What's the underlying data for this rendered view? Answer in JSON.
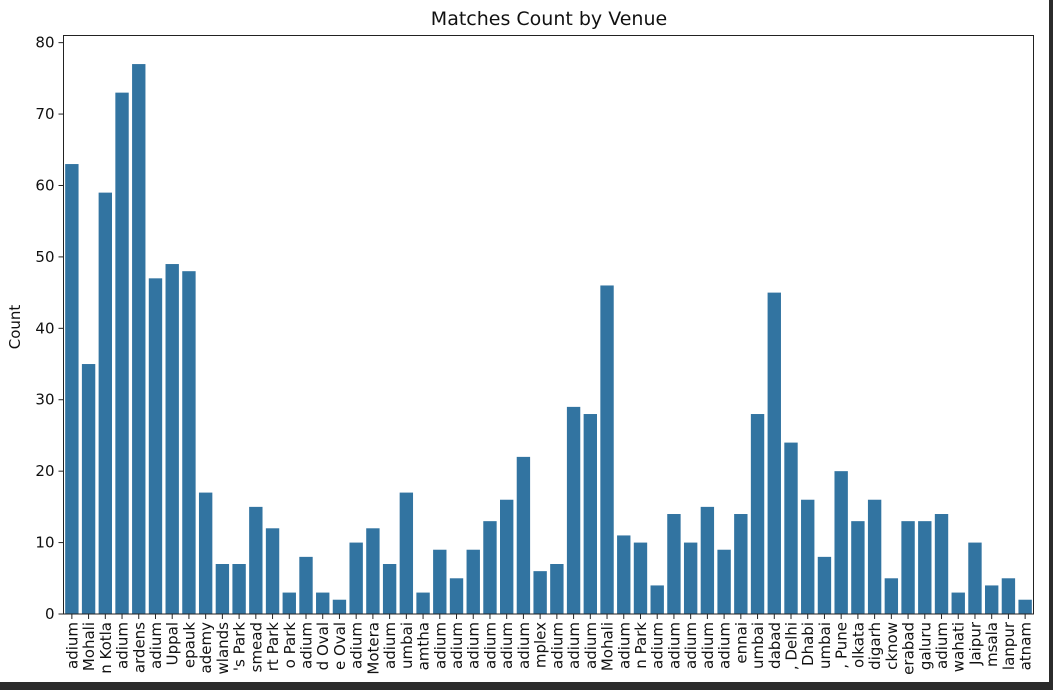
{
  "chart_data": {
    "type": "bar",
    "title": "Matches Count by Venue",
    "xlabel": "",
    "ylabel": "Count",
    "ylim": [
      0,
      81
    ],
    "yticks": [
      0,
      10,
      20,
      30,
      40,
      50,
      60,
      70,
      80
    ],
    "bar_color": "#3274a1",
    "grid": false,
    "categories": [
      "adium",
      "Mohali",
      "n Kotla",
      "adium",
      "ardens",
      "adium",
      "Uppal",
      "epauk",
      "ademy",
      "wlands",
      "'s Park",
      "smead",
      "rt Park",
      "o Park",
      "adium",
      "d Oval",
      "e Oval",
      "adium",
      "Motera",
      "adium",
      "umbai",
      "amtha",
      "adium",
      "adium",
      "adium",
      "adium",
      "adium",
      "adium",
      "mplex",
      "adium",
      "adium",
      "adium",
      "Mohali",
      "adium",
      "n Park",
      "adium",
      "adium",
      "adium",
      "adium",
      "adium",
      "ennai",
      "umbai",
      "dabad",
      ", Delhi",
      "Dhabi",
      "umbai",
      ", Pune",
      "olkata",
      "digarh",
      "cknow",
      "erabad",
      "galuru",
      "adium",
      "wahati",
      "Jaipur",
      "msala",
      "lanpur",
      "atnam"
    ],
    "values": [
      63,
      35,
      59,
      73,
      77,
      47,
      49,
      48,
      17,
      7,
      7,
      15,
      12,
      3,
      8,
      3,
      2,
      10,
      12,
      7,
      17,
      3,
      9,
      5,
      9,
      13,
      16,
      22,
      6,
      7,
      29,
      28,
      46,
      11,
      10,
      4,
      14,
      10,
      15,
      9,
      14,
      28,
      45,
      24,
      16,
      8,
      20,
      13,
      16,
      5,
      13,
      13,
      14,
      3,
      10,
      4,
      5,
      2
    ]
  }
}
